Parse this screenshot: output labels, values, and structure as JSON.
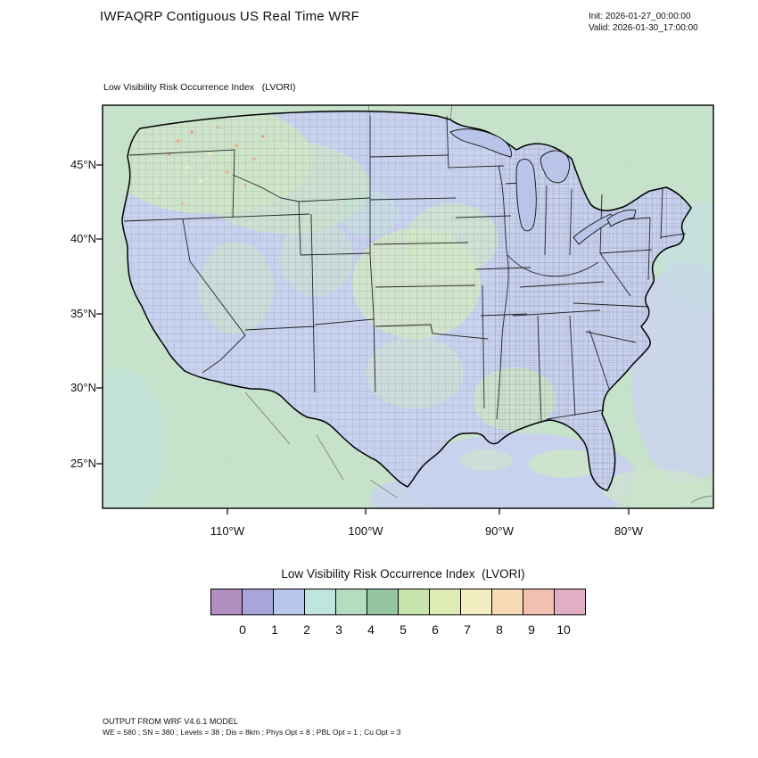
{
  "header": {
    "title": "IWFAQRP Contiguous US Real Time WRF",
    "init": "Init: 2026-01-27_00:00:00",
    "valid": "Valid: 2026-01-30_17:00:00"
  },
  "map": {
    "subtitle": "Low Visibility Risk Occurrence Index   (LVORI)",
    "y_axis": [
      "45°N",
      "40°N",
      "35°N",
      "30°N",
      "25°N"
    ],
    "x_axis": [
      "110°W",
      "100°W",
      "90°W",
      "80°W"
    ]
  },
  "legend": {
    "title": "Low Visibility Risk Occurrence Index  (LVORI)",
    "tick_labels": [
      "0",
      "1",
      "2",
      "3",
      "4",
      "5",
      "6",
      "7",
      "8",
      "9",
      "10"
    ],
    "colors": [
      "#b28fc0",
      "#a8a6d8",
      "#b7c8ec",
      "#bfe5e0",
      "#b4dcc0",
      "#95c5a0",
      "#c6e4ab",
      "#dcecb2",
      "#f2eec2",
      "#f8dbb6",
      "#f3c0b2",
      "#e2aec6"
    ]
  },
  "footer": {
    "line1": "OUTPUT FROM WRF V4.6.1 MODEL",
    "line2": "WE = 580 ; SN = 380 ; Levels = 38 ; Dis = 8km ; Phys Opt = 8 ; PBL Opt = 1 ; Cu Opt = 3"
  }
}
